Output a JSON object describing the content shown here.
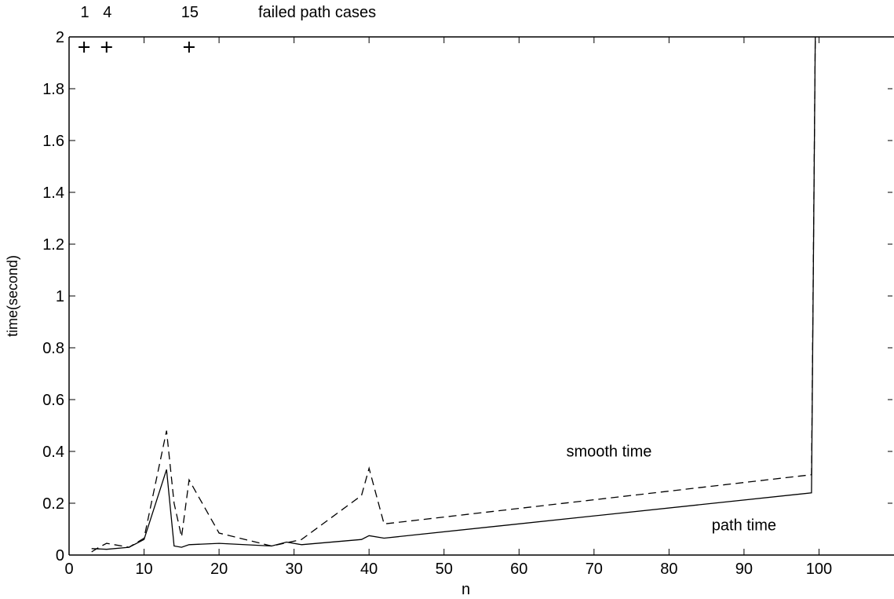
{
  "chart_data": {
    "type": "line",
    "title": "",
    "xlabel": "n",
    "ylabel": "time(second)",
    "xlim": [
      0,
      110
    ],
    "ylim": [
      0,
      2
    ],
    "grid": false,
    "legend": "none",
    "x_ticks": [
      0,
      10,
      20,
      30,
      40,
      50,
      60,
      70,
      80,
      90,
      100
    ],
    "y_ticks": [
      0,
      0.2,
      0.4,
      0.6,
      0.8,
      1,
      1.2,
      1.4,
      1.6,
      1.8,
      2
    ],
    "x_tick_labels": [
      "0",
      "10",
      "20",
      "30",
      "40",
      "50",
      "60",
      "70",
      "80",
      "90",
      "100"
    ],
    "y_tick_labels": [
      "0",
      "0.2",
      "0.4",
      "0.6",
      "0.8",
      "1",
      "1.2",
      "1.4",
      "1.6",
      "1.8",
      "2"
    ],
    "series": [
      {
        "style": "solid",
        "x": [
          3,
          5,
          8,
          10,
          13,
          14,
          15,
          16,
          20,
          27,
          29,
          31,
          39,
          40,
          42,
          99,
          99.5
        ],
        "y": [
          0.025,
          0.022,
          0.03,
          0.06,
          0.33,
          0.035,
          0.03,
          0.04,
          0.045,
          0.035,
          0.05,
          0.04,
          0.06,
          0.075,
          0.065,
          0.24,
          2.0
        ]
      },
      {
        "style": "dashed",
        "x": [
          3,
          4,
          5,
          8,
          10,
          13,
          14,
          15,
          16,
          20,
          27,
          31,
          39,
          40,
          42,
          99,
          99.5
        ],
        "y": [
          0.012,
          0.03,
          0.045,
          0.03,
          0.065,
          0.48,
          0.2,
          0.07,
          0.29,
          0.085,
          0.035,
          0.06,
          0.23,
          0.335,
          0.12,
          0.31,
          2.0
        ]
      }
    ],
    "failed_markers": [
      {
        "x": 2,
        "label": "1"
      },
      {
        "x": 5,
        "label": "4"
      },
      {
        "x": 16,
        "label": "15"
      }
    ],
    "failed_caption": "failed path cases",
    "annotations": [
      {
        "text": "smooth time",
        "x": 72,
        "y": 0.38
      },
      {
        "text": "path time",
        "x": 90,
        "y": 0.095
      }
    ]
  }
}
